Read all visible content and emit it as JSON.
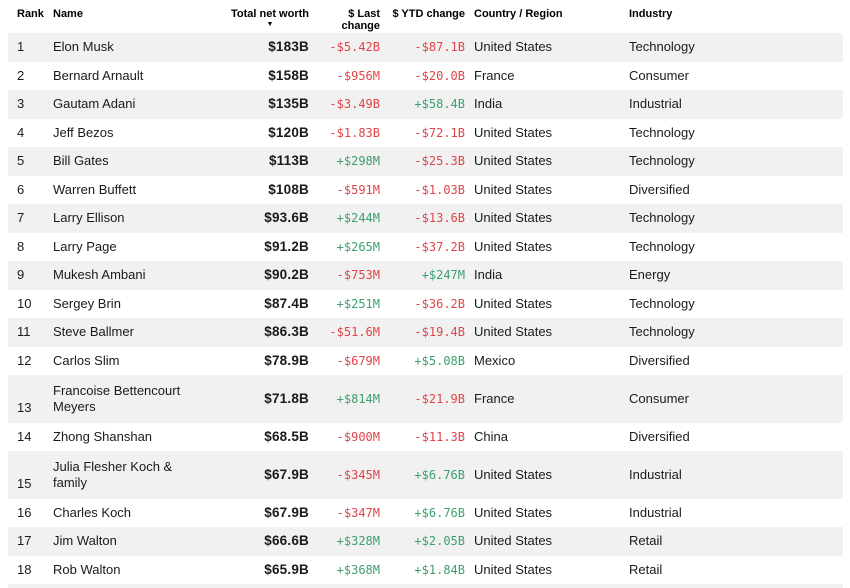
{
  "colors": {
    "negative": "#e04448",
    "positive": "#3da06e",
    "row_stripe": "#f1f1f1",
    "text": "#1a1a1a"
  },
  "header": {
    "rank": "Rank",
    "name": "Name",
    "net_worth": "Total net worth",
    "sort_icon": "▼",
    "last_change": "$ Last change",
    "ytd_change": "$ YTD change",
    "country": "Country / Region",
    "industry": "Industry"
  },
  "rows": [
    {
      "rank": "1",
      "name": "Elon Musk",
      "net_worth": "$183B",
      "last_change": "-$5.42B",
      "last_dir": "neg",
      "ytd_change": "-$87.1B",
      "ytd_dir": "neg",
      "country": "United States",
      "industry": "Technology"
    },
    {
      "rank": "2",
      "name": "Bernard Arnault",
      "net_worth": "$158B",
      "last_change": "-$956M",
      "last_dir": "neg",
      "ytd_change": "-$20.0B",
      "ytd_dir": "neg",
      "country": "France",
      "industry": "Consumer"
    },
    {
      "rank": "3",
      "name": "Gautam Adani",
      "net_worth": "$135B",
      "last_change": "-$3.49B",
      "last_dir": "neg",
      "ytd_change": "+$58.4B",
      "ytd_dir": "pos",
      "country": "India",
      "industry": "Industrial"
    },
    {
      "rank": "4",
      "name": "Jeff Bezos",
      "net_worth": "$120B",
      "last_change": "-$1.83B",
      "last_dir": "neg",
      "ytd_change": "-$72.1B",
      "ytd_dir": "neg",
      "country": "United States",
      "industry": "Technology"
    },
    {
      "rank": "5",
      "name": "Bill Gates",
      "net_worth": "$113B",
      "last_change": "+$298M",
      "last_dir": "pos",
      "ytd_change": "-$25.3B",
      "ytd_dir": "neg",
      "country": "United States",
      "industry": "Technology"
    },
    {
      "rank": "6",
      "name": "Warren Buffett",
      "net_worth": "$108B",
      "last_change": "-$591M",
      "last_dir": "neg",
      "ytd_change": "-$1.03B",
      "ytd_dir": "neg",
      "country": "United States",
      "industry": "Diversified"
    },
    {
      "rank": "7",
      "name": "Larry Ellison",
      "net_worth": "$93.6B",
      "last_change": "+$244M",
      "last_dir": "pos",
      "ytd_change": "-$13.6B",
      "ytd_dir": "neg",
      "country": "United States",
      "industry": "Technology"
    },
    {
      "rank": "8",
      "name": "Larry Page",
      "net_worth": "$91.2B",
      "last_change": "+$265M",
      "last_dir": "pos",
      "ytd_change": "-$37.2B",
      "ytd_dir": "neg",
      "country": "United States",
      "industry": "Technology"
    },
    {
      "rank": "9",
      "name": "Mukesh Ambani",
      "net_worth": "$90.2B",
      "last_change": "-$753M",
      "last_dir": "neg",
      "ytd_change": "+$247M",
      "ytd_dir": "pos",
      "country": "India",
      "industry": "Energy"
    },
    {
      "rank": "10",
      "name": "Sergey Brin",
      "net_worth": "$87.4B",
      "last_change": "+$251M",
      "last_dir": "pos",
      "ytd_change": "-$36.2B",
      "ytd_dir": "neg",
      "country": "United States",
      "industry": "Technology"
    },
    {
      "rank": "11",
      "name": "Steve Ballmer",
      "net_worth": "$86.3B",
      "last_change": "-$51.6M",
      "last_dir": "neg",
      "ytd_change": "-$19.4B",
      "ytd_dir": "neg",
      "country": "United States",
      "industry": "Technology"
    },
    {
      "rank": "12",
      "name": "Carlos Slim",
      "net_worth": "$78.9B",
      "last_change": "-$679M",
      "last_dir": "neg",
      "ytd_change": "+$5.08B",
      "ytd_dir": "pos",
      "country": "Mexico",
      "industry": "Diversified"
    },
    {
      "rank": "13",
      "name": "Francoise Bettencourt Meyers",
      "net_worth": "$71.8B",
      "last_change": "+$814M",
      "last_dir": "pos",
      "ytd_change": "-$21.9B",
      "ytd_dir": "neg",
      "country": "France",
      "industry": "Consumer",
      "double": true
    },
    {
      "rank": "14",
      "name": "Zhong Shanshan",
      "net_worth": "$68.5B",
      "last_change": "-$900M",
      "last_dir": "neg",
      "ytd_change": "-$11.3B",
      "ytd_dir": "neg",
      "country": "China",
      "industry": "Diversified"
    },
    {
      "rank": "15",
      "name": "Julia Flesher Koch & family",
      "net_worth": "$67.9B",
      "last_change": "-$345M",
      "last_dir": "neg",
      "ytd_change": "+$6.76B",
      "ytd_dir": "pos",
      "country": "United States",
      "industry": "Industrial",
      "double": true
    },
    {
      "rank": "16",
      "name": "Charles Koch",
      "net_worth": "$67.9B",
      "last_change": "-$347M",
      "last_dir": "neg",
      "ytd_change": "+$6.76B",
      "ytd_dir": "pos",
      "country": "United States",
      "industry": "Industrial"
    },
    {
      "rank": "17",
      "name": "Jim Walton",
      "net_worth": "$66.6B",
      "last_change": "+$328M",
      "last_dir": "pos",
      "ytd_change": "+$2.05B",
      "ytd_dir": "pos",
      "country": "United States",
      "industry": "Retail"
    },
    {
      "rank": "18",
      "name": "Rob Walton",
      "net_worth": "$65.9B",
      "last_change": "+$368M",
      "last_dir": "pos",
      "ytd_change": "+$1.84B",
      "ytd_dir": "pos",
      "country": "United States",
      "industry": "Retail"
    }
  ]
}
